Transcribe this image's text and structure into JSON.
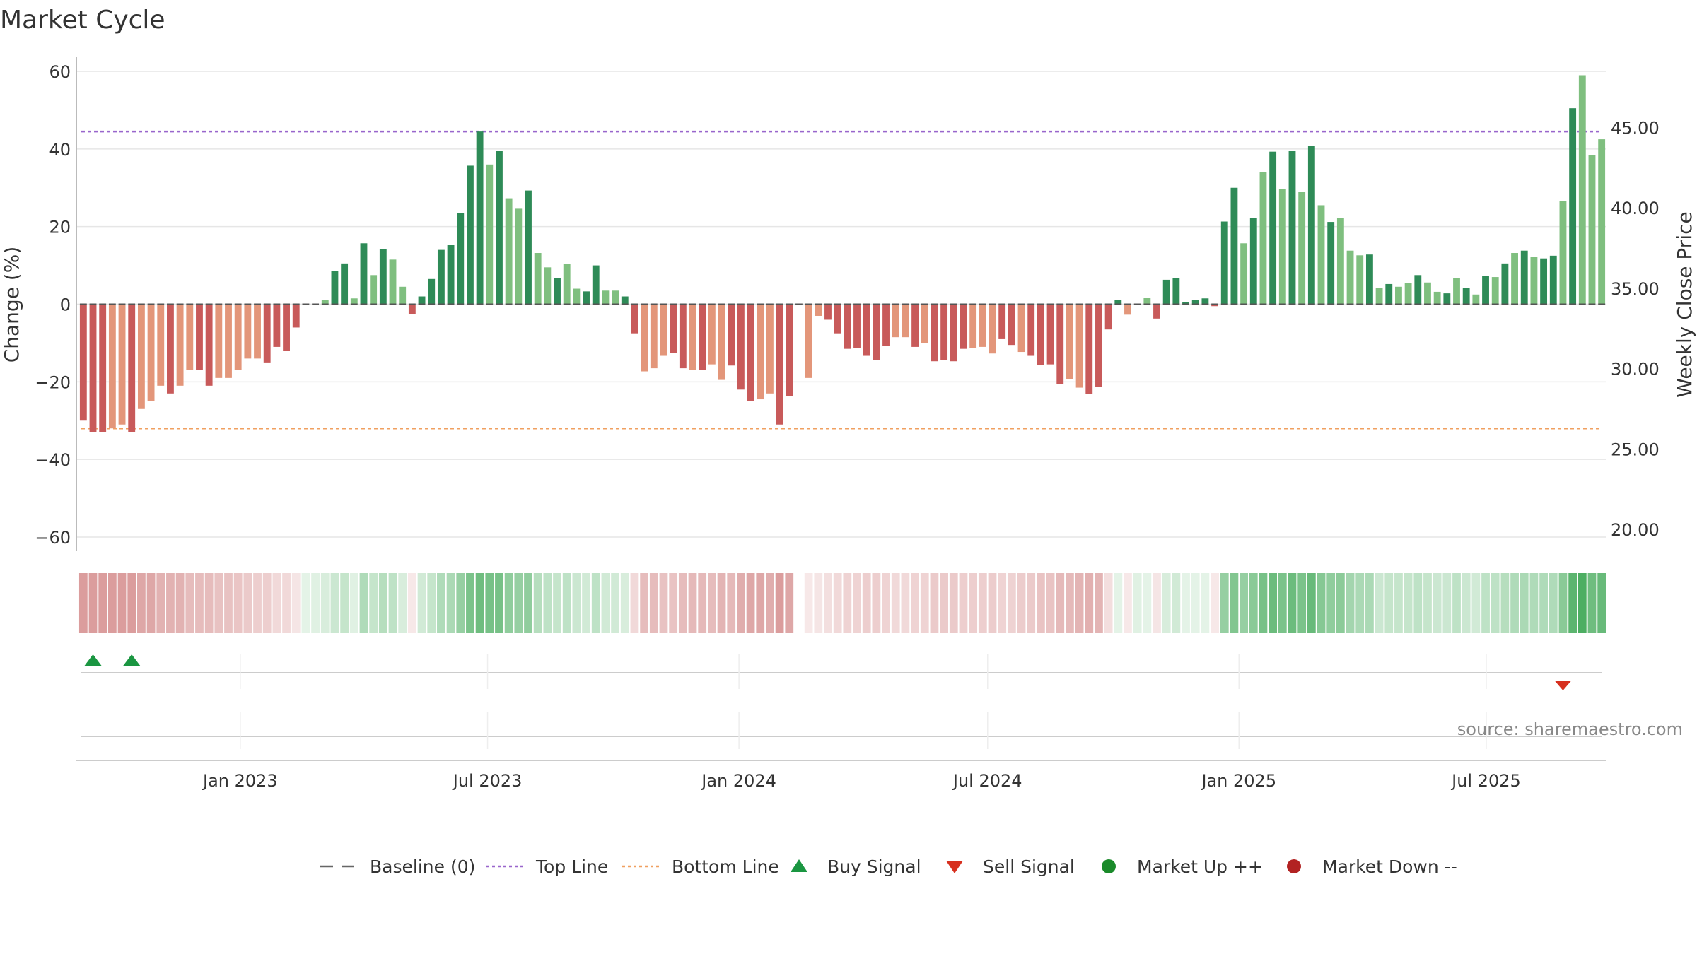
{
  "title": "Market Cycle",
  "source": "source: sharemaestro.com",
  "colors": {
    "strong_up": "#2e8b57",
    "weak_up": "#7fbf7f",
    "strong_down": "#c85a5a",
    "weak_down": "#e3967a",
    "top_line": "#9966cc",
    "bottom_line": "#f0a060",
    "buy": "#1a9641",
    "sell": "#d7301f",
    "market_up": "#1a8a2a",
    "market_down": "#b22222",
    "grid": "#e6e6e6"
  },
  "legend": [
    {
      "key": "baseline",
      "label": "Baseline (0)"
    },
    {
      "key": "top",
      "label": "Top Line"
    },
    {
      "key": "bottom",
      "label": "Bottom Line"
    },
    {
      "key": "buy",
      "label": "Buy Signal"
    },
    {
      "key": "sell",
      "label": "Sell Signal"
    },
    {
      "key": "mup",
      "label": "Market Up ++"
    },
    {
      "key": "mdown",
      "label": "Market Down --"
    }
  ],
  "chart_data": {
    "type": "bar",
    "ylabel": "Change (%)",
    "y2label": "Weekly Close Price",
    "ylim": [
      -60,
      60
    ],
    "y_ticks": [
      60,
      40,
      20,
      0,
      -20,
      -40,
      -60
    ],
    "y_tick_labels": [
      "60",
      "40",
      "20",
      "0",
      "−20",
      "−40",
      "−60"
    ],
    "y2lim": [
      20,
      50
    ],
    "y2_ticks": [
      45,
      40,
      35,
      30,
      25,
      20
    ],
    "y2_tick_labels": [
      "45.00",
      "40.00",
      "35.00",
      "30.00",
      "25.00",
      "20.00"
    ],
    "top_line": 44.5,
    "bottom_line": -32,
    "grid": true,
    "legend_position": "bottom",
    "x_start": "2022-09-03",
    "x_end": "2025-09-27",
    "x_ticks": [
      {
        "date": "2023-01-01",
        "label": "Jan 2023"
      },
      {
        "date": "2023-07-01",
        "label": "Jul 2023"
      },
      {
        "date": "2024-01-01",
        "label": "Jan 2024"
      },
      {
        "date": "2024-07-01",
        "label": "Jul 2024"
      },
      {
        "date": "2025-01-01",
        "label": "Jan 2025"
      },
      {
        "date": "2025-07-01",
        "label": "Jul 2025"
      }
    ],
    "values": [
      -30,
      -33,
      -33,
      -32,
      -31,
      -33,
      -27,
      -25,
      -21,
      -23,
      -21,
      -17,
      -17,
      -21,
      -19,
      -19,
      -17,
      -14,
      -14,
      -15,
      -11,
      -12,
      -6,
      0,
      0,
      1,
      8.5,
      10.5,
      1.5,
      15.7,
      7.5,
      14.2,
      11.5,
      4.5,
      -2.5,
      2,
      6.5,
      14,
      15.3,
      23.5,
      35.7,
      44.5,
      36,
      39.5,
      27.3,
      24.6,
      29.3,
      13.2,
      9.5,
      6.8,
      10.3,
      4,
      3.3,
      10,
      3.5,
      3.5,
      2,
      -7.5,
      -17.3,
      -16.5,
      -13.3,
      -12.5,
      -16.5,
      -17,
      -17,
      -15.5,
      -19.5,
      -15.8,
      -22,
      -25,
      -24.5,
      -23,
      -31,
      -23.7,
      0,
      -19,
      -3,
      -4,
      -7.5,
      -11.5,
      -11.3,
      -13.3,
      -14.3,
      -10.8,
      -8.5,
      -8.5,
      -11,
      -10,
      -14.7,
      -14.3,
      -14.7,
      -11.5,
      -11.3,
      -11,
      -12.7,
      -9,
      -10.5,
      -12.3,
      -13.3,
      -15.7,
      -15.5,
      -20.5,
      -19.3,
      -21.5,
      -23.2,
      -21.3,
      -6.5,
      1,
      -2.7,
      0,
      1.7,
      -3.7,
      6.3,
      6.8,
      0.5,
      1,
      1.5,
      -0.5,
      21.3,
      30,
      15.7,
      22.3,
      34,
      39.3,
      29.7,
      39.5,
      29,
      40.8,
      25.5,
      21.2,
      22.2,
      13.8,
      12.6,
      12.8,
      4.2,
      5.2,
      4.5,
      5.5,
      7.5,
      5.6,
      3.2,
      2.8,
      6.8,
      4.2,
      2.5,
      7.2,
      7,
      10.5,
      13.2,
      13.8,
      12.2,
      11.8,
      12.5,
      26.6,
      50.5,
      59,
      38.5,
      42.5
    ],
    "bar_strength": "SSSWWSWWWSWWSSWWWWWSSSSSWWSSWSWSWWSSSSSSSSWSWWSWWSWWSSWWSSWWWSSWSWWSSSWWSSWWWSSSSSSSWWSWSSSSWWWSSWSSSSWWSSSSWSWSSSSSSSSSWSWSWSWSWSWWWSWSWWSWWSWSWSWSWSWSSWSWW",
    "cycle_strip": [
      -0.45,
      -0.45,
      -0.45,
      -0.45,
      -0.45,
      -0.45,
      -0.4,
      -0.4,
      -0.35,
      -0.35,
      -0.35,
      -0.3,
      -0.3,
      -0.3,
      -0.28,
      -0.28,
      -0.26,
      -0.24,
      -0.22,
      -0.22,
      -0.18,
      -0.18,
      -0.12,
      0.1,
      0.12,
      0.15,
      0.2,
      0.22,
      0.12,
      0.3,
      0.22,
      0.28,
      0.25,
      0.15,
      -0.1,
      0.18,
      0.22,
      0.3,
      0.32,
      0.4,
      0.5,
      0.55,
      0.52,
      0.52,
      0.42,
      0.4,
      0.42,
      0.28,
      0.25,
      0.22,
      0.25,
      0.2,
      0.18,
      0.25,
      0.18,
      0.18,
      0.15,
      -0.18,
      -0.3,
      -0.3,
      -0.28,
      -0.27,
      -0.3,
      -0.32,
      -0.32,
      -0.3,
      -0.34,
      -0.32,
      -0.38,
      -0.4,
      -0.4,
      -0.38,
      -0.45,
      -0.4,
      0,
      -0.1,
      -0.12,
      -0.14,
      -0.18,
      -0.2,
      -0.2,
      -0.22,
      -0.22,
      -0.2,
      -0.18,
      -0.18,
      -0.2,
      -0.2,
      -0.24,
      -0.24,
      -0.24,
      -0.22,
      -0.22,
      -0.22,
      -0.23,
      -0.2,
      -0.21,
      -0.23,
      -0.24,
      -0.27,
      -0.27,
      -0.32,
      -0.32,
      -0.34,
      -0.36,
      -0.34,
      -0.15,
      0.1,
      -0.1,
      0.12,
      0.1,
      -0.12,
      0.15,
      0.18,
      0.1,
      0.1,
      0.1,
      -0.1,
      0.4,
      0.48,
      0.4,
      0.45,
      0.52,
      0.56,
      0.5,
      0.56,
      0.5,
      0.58,
      0.46,
      0.42,
      0.44,
      0.35,
      0.32,
      0.32,
      0.2,
      0.22,
      0.22,
      0.22,
      0.25,
      0.22,
      0.2,
      0.2,
      0.25,
      0.2,
      0.18,
      0.25,
      0.25,
      0.28,
      0.3,
      0.32,
      0.3,
      0.3,
      0.3,
      0.45,
      0.62,
      0.68,
      0.55,
      0.58
    ],
    "buy_signals": [
      1,
      5
    ],
    "sell_signals": [
      153
    ],
    "market_up_signals": [],
    "market_down_signals": []
  }
}
